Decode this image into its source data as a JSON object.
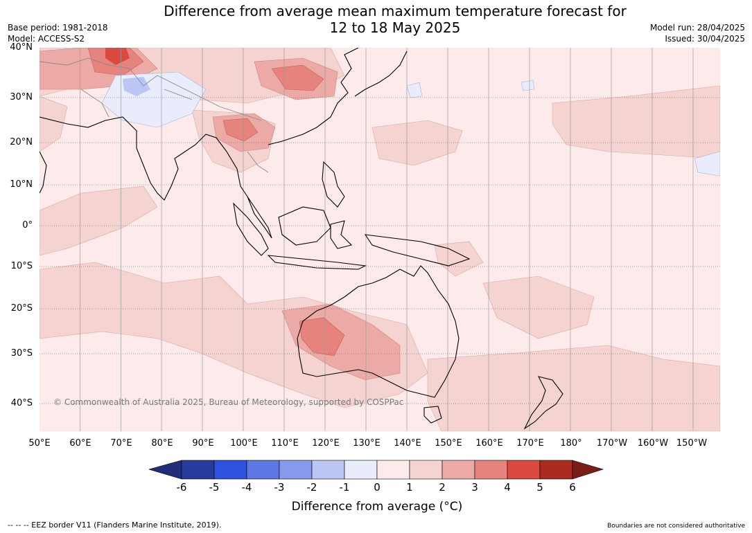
{
  "title": {
    "line1": "Difference from average mean maximum temperature forecast for",
    "line2": "12 to 18 May 2025"
  },
  "meta": {
    "base_period": "Base period: 1981-2018",
    "model": "Model: ACCESS-S2",
    "model_run": "Model run: 28/04/2025",
    "issued": "Issued: 30/04/2025"
  },
  "map": {
    "copyright": "© Commonwealth of Australia 2025, Bureau of Meteorology, supported by COSPPac",
    "lat_labels": [
      "40°N",
      "30°N",
      "20°N",
      "10°N",
      "0°",
      "10°S",
      "20°S",
      "30°S",
      "40°S"
    ],
    "lon_labels": [
      "50°E",
      "60°E",
      "70°E",
      "80°E",
      "90°E",
      "100°E",
      "110°E",
      "120°E",
      "130°E",
      "140°E",
      "150°E",
      "160°E",
      "170°E",
      "180°",
      "170°W",
      "160°W",
      "150°W"
    ]
  },
  "legend": {
    "ticks": [
      "-6",
      "-5",
      "-4",
      "-3",
      "-2",
      "-1",
      "0",
      "1",
      "2",
      "3",
      "4",
      "5",
      "6"
    ],
    "colors": [
      "#273b9c",
      "#2f51e0",
      "#5c76e4",
      "#8699ea",
      "#bcc6f4",
      "#e8ecfb",
      "#fcebea",
      "#f5d3d0",
      "#ecaaa6",
      "#e5837c",
      "#da4a3e",
      "#ab2a22"
    ],
    "under_color": "#1f2d7a",
    "over_color": "#7a1d18",
    "label": "Difference from average (°C)"
  },
  "footer": {
    "eez": "--  --  -- EEZ border V11 (Flanders Marine Institute, 2019).",
    "boundaries": "Boundaries are not considered authoritative"
  }
}
